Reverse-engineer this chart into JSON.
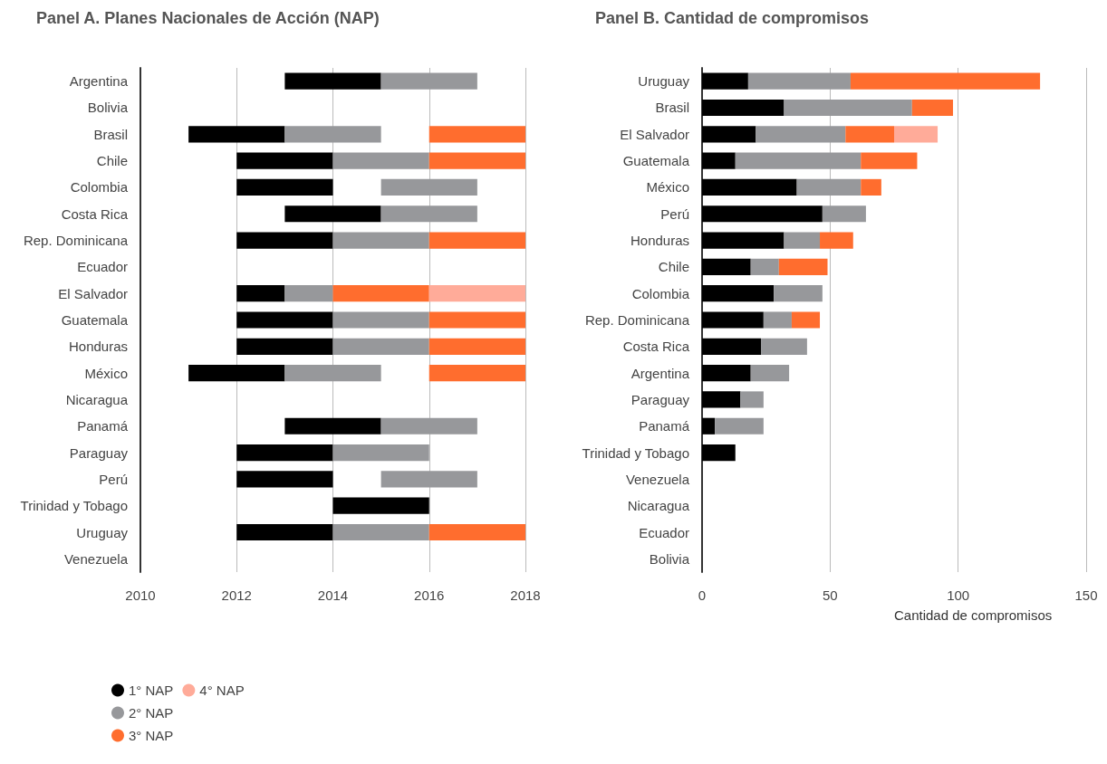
{
  "chart_data": [
    {
      "type": "bar",
      "orientation": "horizontal",
      "title": "Panel A. Planes Nacionales de Acción (NAP)",
      "categories": [
        "Argentina",
        "Bolivia",
        "Brasil",
        "Chile",
        "Colombia",
        "Costa Rica",
        "Rep. Dominicana",
        "Ecuador",
        "El Salvador",
        "Guatemala",
        "Honduras",
        "México",
        "Nicaragua",
        "Panamá",
        "Paraguay",
        "Perú",
        "Trinidad y Tobago",
        "Uruguay",
        "Venezuela"
      ],
      "series": [
        {
          "name": "1° NAP",
          "color": "#000000",
          "base": [
            2013,
            null,
            2011,
            2012,
            2012,
            2013,
            2012,
            null,
            2012,
            2012,
            2012,
            2011,
            null,
            2013,
            2012,
            2012,
            2014,
            2012,
            null
          ],
          "values": [
            2,
            null,
            2,
            2,
            2,
            2,
            2,
            null,
            1,
            2,
            2,
            2,
            null,
            2,
            2,
            2,
            2,
            2,
            null
          ]
        },
        {
          "name": "2° NAP",
          "color": "#97989b",
          "base": [
            2015,
            null,
            2013,
            2014,
            2015,
            2015,
            2014,
            null,
            2013,
            2014,
            2014,
            2013,
            null,
            2015,
            2014,
            2015,
            null,
            2014,
            null
          ],
          "values": [
            2,
            null,
            2,
            2,
            2,
            2,
            2,
            null,
            1,
            2,
            2,
            2,
            null,
            2,
            2,
            2,
            null,
            2,
            null
          ]
        },
        {
          "name": "3° NAP",
          "color": "#ff6d2e",
          "base": [
            null,
            null,
            2016,
            2016,
            null,
            null,
            2016,
            null,
            2014,
            2016,
            2016,
            2016,
            null,
            null,
            null,
            null,
            null,
            2016,
            null
          ],
          "values": [
            null,
            null,
            2,
            2,
            null,
            null,
            2,
            null,
            2,
            2,
            2,
            2,
            null,
            null,
            null,
            null,
            null,
            2,
            null
          ]
        },
        {
          "name": "4° NAP",
          "color": "#ffab99",
          "base": [
            null,
            null,
            null,
            null,
            null,
            null,
            null,
            null,
            2016,
            null,
            null,
            null,
            null,
            null,
            null,
            null,
            null,
            null,
            null
          ],
          "values": [
            null,
            null,
            null,
            null,
            null,
            null,
            null,
            null,
            2,
            null,
            null,
            null,
            null,
            null,
            null,
            null,
            null,
            null,
            null
          ]
        }
      ],
      "xlim": [
        2010,
        2018
      ],
      "xticks": [
        2010,
        2012,
        2014,
        2016,
        2018
      ],
      "grid": "x",
      "legend": "bottom left"
    },
    {
      "type": "bar",
      "orientation": "horizontal",
      "stacked": true,
      "title": "Panel B. Cantidad de compromisos",
      "xlabel": "Cantidad de compromisos",
      "categories": [
        "Uruguay",
        "Brasil",
        "El Salvador",
        "Guatemala",
        "México",
        "Perú",
        "Honduras",
        "Chile",
        "Colombia",
        "Rep. Dominicana",
        "Costa Rica",
        "Argentina",
        "Paraguay",
        "Panamá",
        "Trinidad y Tobago",
        "Venezuela",
        "Nicaragua",
        "Ecuador",
        "Bolivia"
      ],
      "series": [
        {
          "color": "#000000",
          "values": [
            18,
            32,
            21,
            13,
            37,
            47,
            32,
            19,
            28,
            24,
            23,
            19,
            15,
            5,
            13,
            null,
            null,
            null,
            null
          ]
        },
        {
          "color": "#97989b",
          "values": [
            40,
            50,
            35,
            49,
            25,
            17,
            14,
            11,
            19,
            11,
            18,
            15,
            9,
            19,
            null,
            null,
            null,
            null,
            null
          ]
        },
        {
          "color": "#ff6d2e",
          "values": [
            74,
            16,
            19,
            22,
            8,
            null,
            13,
            19,
            null,
            11,
            null,
            null,
            null,
            null,
            null,
            null,
            null,
            null,
            null
          ]
        },
        {
          "color": "#ffab99",
          "values": [
            null,
            null,
            17,
            null,
            null,
            null,
            null,
            null,
            null,
            null,
            null,
            null,
            null,
            null,
            null,
            null,
            null,
            null,
            null
          ]
        }
      ],
      "xlim": [
        0,
        150
      ],
      "xticks": [
        0,
        50,
        100,
        150
      ],
      "grid": "x",
      "legend": false
    }
  ]
}
